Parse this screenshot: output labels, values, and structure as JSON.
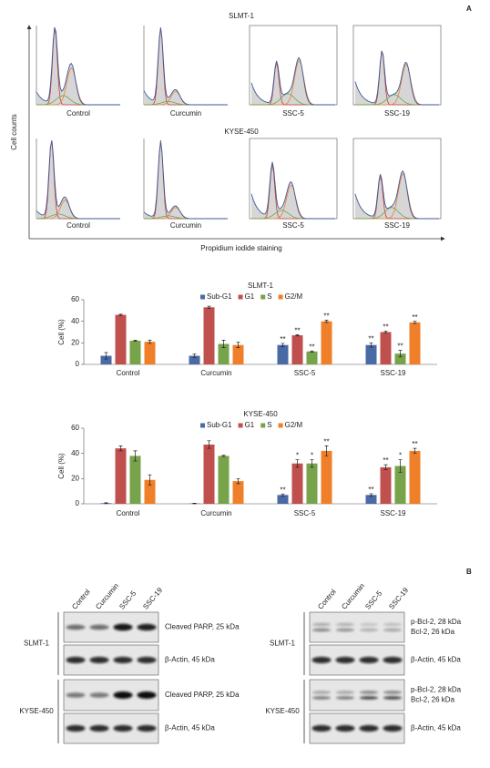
{
  "panel_a": {
    "label": "A",
    "y_axis": "Cell counts",
    "x_axis": "Propidium iodide staining",
    "histograms": [
      {
        "title": "SLMT-1",
        "samples": [
          "Control",
          "Curcumin",
          "SSC-5",
          "SSC-19"
        ]
      },
      {
        "title": "KYSE-450",
        "samples": [
          "Control",
          "Curcumin",
          "SSC-5",
          "SSC-19"
        ]
      }
    ]
  },
  "chart_data": [
    {
      "type": "bar",
      "title": "SLMT-1",
      "y_label": "Cell (%)",
      "categories": [
        "Control",
        "Curcumin",
        "SSC-5",
        "SSC-19"
      ],
      "ylim": [
        0,
        60
      ],
      "yticks": [
        0,
        20,
        40,
        60
      ],
      "legend": "top",
      "series": [
        {
          "name": "Sub-G1",
          "color": "#4a6aa5",
          "values": [
            8,
            8,
            18,
            18
          ],
          "errors": [
            3,
            1.5,
            1.5,
            2
          ],
          "significance": [
            null,
            null,
            "**",
            "**"
          ]
        },
        {
          "name": "G1",
          "color": "#c0504d",
          "values": [
            46,
            53,
            27,
            30
          ],
          "errors": [
            0.6,
            1,
            0.6,
            1
          ],
          "significance": [
            null,
            null,
            "**",
            "**"
          ]
        },
        {
          "name": "S",
          "color": "#77a34a",
          "values": [
            22,
            19,
            12,
            10
          ],
          "errors": [
            0.5,
            3.5,
            0.5,
            3
          ],
          "significance": [
            null,
            null,
            "**",
            "**"
          ]
        },
        {
          "name": "G2/M",
          "color": "#f07f2a",
          "values": [
            21,
            18,
            40,
            39
          ],
          "errors": [
            1.5,
            2.5,
            1,
            1
          ],
          "significance": [
            null,
            null,
            "**",
            "**"
          ]
        }
      ]
    },
    {
      "type": "bar",
      "title": "KYSE-450",
      "y_label": "Cell (%)",
      "categories": [
        "Control",
        "Curcumin",
        "SSC-5",
        "SSC-19"
      ],
      "ylim": [
        0,
        60
      ],
      "yticks": [
        0,
        20,
        40,
        60
      ],
      "legend": "top",
      "series": [
        {
          "name": "Sub-G1",
          "color": "#4a6aa5",
          "values": [
            0.5,
            0.3,
            7,
            7
          ],
          "errors": [
            0.3,
            0.2,
            0.8,
            1
          ],
          "significance": [
            null,
            null,
            "**",
            "**"
          ]
        },
        {
          "name": "G1",
          "color": "#c0504d",
          "values": [
            44,
            47,
            32,
            29
          ],
          "errors": [
            2,
            3,
            3,
            2
          ],
          "significance": [
            null,
            null,
            "*",
            "**"
          ]
        },
        {
          "name": "S",
          "color": "#77a34a",
          "values": [
            38,
            38,
            32,
            30
          ],
          "errors": [
            4,
            0.5,
            3,
            5
          ],
          "significance": [
            null,
            null,
            "*",
            "*"
          ]
        },
        {
          "name": "G2/M",
          "color": "#f07f2a",
          "values": [
            19,
            18,
            42,
            42
          ],
          "errors": [
            4,
            2,
            4,
            2
          ],
          "significance": [
            null,
            null,
            "**",
            "**"
          ]
        }
      ]
    }
  ],
  "panel_b": {
    "label": "B",
    "blots": [
      {
        "lanes": [
          "Control",
          "Curcumin",
          "SSC-5",
          "SSC-19"
        ],
        "rows": [
          {
            "cell_line": "SLMT-1",
            "bands": [
              [
                "Cleaved PARP, 25 kDa"
              ],
              [
                "β-Actin, 45 kDa"
              ]
            ]
          },
          {
            "cell_line": "KYSE-450",
            "bands": [
              [
                "Cleaved PARP, 25 kDa"
              ],
              [
                "β-Actin, 45 kDa"
              ]
            ]
          }
        ]
      },
      {
        "lanes": [
          "Control",
          "Curcumin",
          "SSC-5",
          "SSC-19"
        ],
        "rows": [
          {
            "cell_line": "SLMT-1",
            "bands": [
              [
                "p-Bcl-2, 28 kDa",
                "Bcl-2, 26 kDa"
              ],
              [
                "β-Actin, 45 kDa"
              ]
            ]
          },
          {
            "cell_line": "KYSE-450",
            "bands": [
              [
                "p-Bcl-2, 28 kDa",
                "Bcl-2, 26 kDa"
              ],
              [
                "β-Actin, 45 kDa"
              ]
            ]
          }
        ]
      }
    ]
  }
}
